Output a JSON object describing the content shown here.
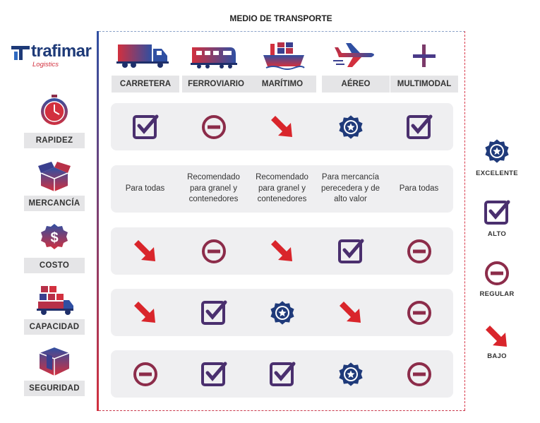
{
  "title": "MEDIO DE TRANSPORTE",
  "logo": {
    "name": "trafimar",
    "sub": "Logistics"
  },
  "modes": [
    {
      "label": "CARRETERA",
      "icon": "truck-icon"
    },
    {
      "label": "FERROVIARIO",
      "icon": "train-icon"
    },
    {
      "label": "MARÍTIMO",
      "icon": "ship-icon"
    },
    {
      "label": "AÉREO",
      "icon": "plane-icon"
    },
    {
      "label": "MULTIMODAL",
      "icon": "plus-icon"
    }
  ],
  "categories": [
    {
      "label": "RAPIDEZ",
      "icon": "stopwatch-icon"
    },
    {
      "label": "MERCANCÍA",
      "icon": "box-icon"
    },
    {
      "label": "COSTO",
      "icon": "dollar-badge-icon"
    },
    {
      "label": "CAPACIDAD",
      "icon": "loaded-truck-icon"
    },
    {
      "label": "SEGURIDAD",
      "icon": "secure-box-icon"
    }
  ],
  "ratings": {
    "rapidez": [
      "alto",
      "regular",
      "bajo",
      "excelente",
      "alto"
    ],
    "costo": [
      "bajo",
      "regular",
      "bajo",
      "alto",
      "regular"
    ],
    "capacidad": [
      "bajo",
      "alto",
      "excelente",
      "bajo",
      "regular"
    ],
    "seguridad": [
      "regular",
      "alto",
      "alto",
      "excelente",
      "regular"
    ]
  },
  "mercancia": [
    "Para todas",
    "Recomendado para granel y contenedores",
    "Recomendado para granel y contenedores",
    "Para mercancía perecedera y de alto valor",
    "Para todas"
  ],
  "legend": [
    {
      "key": "excelente",
      "label": "EXCELENTE"
    },
    {
      "key": "alto",
      "label": "ALTO"
    },
    {
      "key": "regular",
      "label": "REGULAR"
    },
    {
      "key": "bajo",
      "label": "BAJO"
    }
  ],
  "colors": {
    "navy": "#1f3a7a",
    "purple": "#4a2f6e",
    "maroon": "#8c2c4a",
    "red": "#d9252b",
    "gray": "#e5e5e7"
  }
}
